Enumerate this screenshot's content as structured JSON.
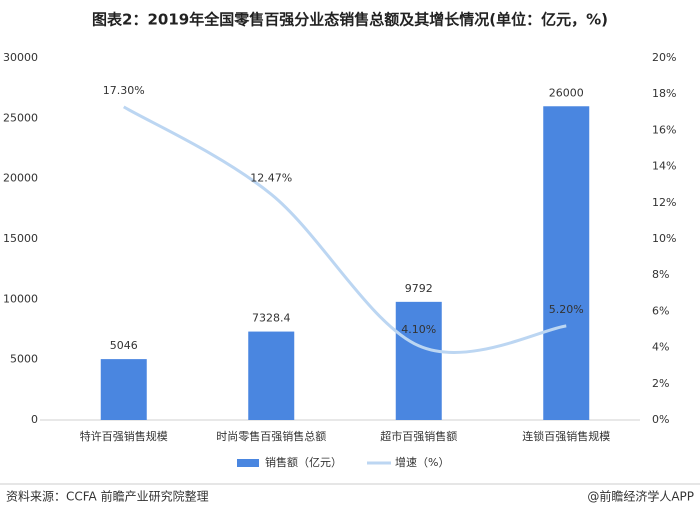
{
  "chart_data": {
    "type": "bar-line",
    "title": "图表2：2019年全国零售百强分业态销售总额及其增长情况(单位：亿元，%)",
    "categories": [
      "特许百强销售规模",
      "时尚零售百强销售总额",
      "超市百强销售额",
      "连锁百强销售规模"
    ],
    "series": [
      {
        "name": "销售额（亿元）",
        "type": "bar",
        "color": "#4a86e0",
        "values": [
          5046,
          7328.4,
          9792,
          26000
        ]
      },
      {
        "name": "增速（%）",
        "type": "line",
        "axis": "y2",
        "color": "#bcd6f2",
        "values": [
          17.3,
          12.47,
          4.1,
          5.2
        ],
        "value_labels": [
          "17.30%",
          "12.47%",
          "4.10%",
          "5.20%"
        ]
      }
    ],
    "ylim": [
      0,
      30000
    ],
    "yticks": [
      0,
      5000,
      10000,
      15000,
      20000,
      25000,
      30000
    ],
    "y2lim": [
      0,
      20
    ],
    "y2ticks": [
      {
        "value": 0,
        "label": "0%"
      },
      {
        "value": 2,
        "label": "2%"
      },
      {
        "value": 4,
        "label": "4%"
      },
      {
        "value": 6,
        "label": "6%"
      },
      {
        "value": 8,
        "label": "8%"
      },
      {
        "value": 10,
        "label": "10%"
      },
      {
        "value": 12,
        "label": "12%"
      },
      {
        "value": 14,
        "label": "14%"
      },
      {
        "value": 16,
        "label": "16%"
      },
      {
        "value": 18,
        "label": "18%"
      },
      {
        "value": 20,
        "label": "20%"
      }
    ],
    "grid": false,
    "source": "资料来源：CCFA  前瞻产业研究院整理",
    "credit": "@前瞻经济学人APP"
  }
}
